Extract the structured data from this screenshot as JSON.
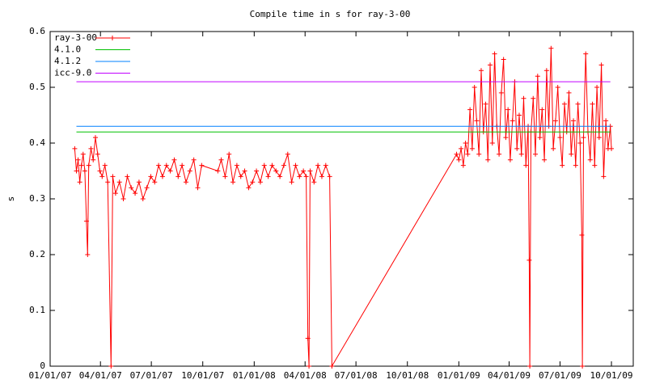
{
  "chart_data": {
    "type": "line",
    "title": "Compile time in s for ray-3-00",
    "y_label": "s",
    "xlim": [
      "01/01/07",
      "11/09/09"
    ],
    "xticks": [
      "01/01/07",
      "04/01/07",
      "07/01/07",
      "10/01/07",
      "01/01/08",
      "04/01/08",
      "07/01/08",
      "10/01/08",
      "01/01/09",
      "04/01/09",
      "07/01/09",
      "10/01/09"
    ],
    "ylim": [
      0,
      0.6
    ],
    "yticks": [
      0,
      0.1,
      0.2,
      0.3,
      0.4,
      0.5,
      0.6
    ],
    "legend": "top-left",
    "series": [
      {
        "name": "ray-3-00",
        "color": "#ff0000",
        "points": true,
        "x": [
          "02/14/07",
          "02/17/07",
          "02/20/07",
          "02/23/07",
          "02/26/07",
          "03/01/07",
          "03/04/07",
          "03/07/07",
          "03/09/07",
          "03/11/07",
          "03/15/07",
          "03/19/07",
          "03/23/07",
          "03/27/07",
          "03/31/07",
          "04/04/07",
          "04/09/07",
          "04/14/07",
          "04/20/07",
          "04/23/07",
          "04/28/07",
          "05/05/07",
          "05/12/07",
          "05/19/07",
          "05/26/07",
          "06/02/07",
          "06/09/07",
          "06/16/07",
          "06/23/07",
          "06/30/07",
          "07/07/07",
          "07/14/07",
          "07/21/07",
          "07/28/07",
          "08/04/07",
          "08/11/07",
          "08/18/07",
          "08/25/07",
          "09/01/07",
          "09/08/07",
          "09/15/07",
          "09/22/07",
          "09/29/07",
          "10/28/07",
          "11/03/07",
          "11/10/07",
          "11/17/07",
          "11/24/07",
          "12/01/07",
          "12/08/07",
          "12/15/07",
          "12/22/07",
          "12/29/07",
          "01/05/08",
          "01/12/08",
          "01/19/08",
          "01/26/08",
          "02/02/08",
          "02/09/08",
          "02/16/08",
          "02/23/08",
          "03/01/08",
          "03/08/08",
          "03/15/08",
          "03/22/08",
          "03/29/08",
          "04/03/08",
          "04/06/08",
          "04/08/08",
          "04/10/08",
          "04/17/08",
          "04/24/08",
          "05/01/08",
          "05/08/08",
          "05/15/08",
          "05/19/08",
          "12/28/08",
          "01/01/09",
          "01/05/09",
          "01/09/09",
          "01/13/09",
          "01/17/09",
          "01/21/09",
          "01/25/09",
          "01/29/09",
          "02/02/09",
          "02/06/09",
          "02/10/09",
          "02/14/09",
          "02/18/09",
          "02/22/09",
          "02/26/09",
          "03/02/09",
          "03/06/09",
          "03/10/09",
          "03/14/09",
          "03/18/09",
          "03/22/09",
          "03/26/09",
          "03/30/09",
          "04/03/09",
          "04/07/09",
          "04/11/09",
          "04/15/09",
          "04/19/09",
          "04/23/09",
          "04/27/09",
          "05/01/09",
          "05/05/09",
          "05/07/09",
          "05/08/09",
          "05/10/09",
          "05/14/09",
          "05/18/09",
          "05/22/09",
          "05/26/09",
          "05/30/09",
          "06/03/09",
          "06/07/09",
          "06/11/09",
          "06/15/09",
          "06/19/09",
          "06/23/09",
          "06/27/09",
          "07/01/09",
          "07/05/09",
          "07/09/09",
          "07/13/09",
          "07/17/09",
          "07/21/09",
          "07/25/09",
          "07/29/09",
          "08/02/09",
          "08/06/09",
          "08/09/09",
          "08/10/09",
          "08/12/09",
          "08/16/09",
          "08/20/09",
          "08/24/09",
          "08/28/09",
          "09/01/09",
          "09/05/09",
          "09/09/09",
          "09/13/09",
          "09/17/09",
          "09/21/09",
          "09/25/09",
          "09/29/09",
          "10/01/09"
        ],
        "values": [
          0.39,
          0.35,
          0.37,
          0.33,
          0.36,
          0.38,
          0.35,
          0.26,
          0.2,
          0.36,
          0.39,
          0.37,
          0.41,
          0.38,
          0.35,
          0.34,
          0.36,
          0.33,
          0,
          0.34,
          0.31,
          0.33,
          0.3,
          0.34,
          0.32,
          0.31,
          0.33,
          0.3,
          0.32,
          0.34,
          0.33,
          0.36,
          0.34,
          0.36,
          0.35,
          0.37,
          0.34,
          0.36,
          0.33,
          0.35,
          0.37,
          0.32,
          0.36,
          0.35,
          0.37,
          0.34,
          0.38,
          0.33,
          0.36,
          0.34,
          0.35,
          0.32,
          0.33,
          0.35,
          0.33,
          0.36,
          0.34,
          0.36,
          0.35,
          0.34,
          0.36,
          0.38,
          0.33,
          0.36,
          0.34,
          0.35,
          0.34,
          0.05,
          0,
          0.35,
          0.33,
          0.36,
          0.34,
          0.36,
          0.34,
          0,
          0.38,
          0.37,
          0.39,
          0.36,
          0.4,
          0.38,
          0.46,
          0.39,
          0.5,
          0.44,
          0.38,
          0.53,
          0.42,
          0.47,
          0.37,
          0.54,
          0.4,
          0.56,
          0.43,
          0.38,
          0.49,
          0.55,
          0.41,
          0.46,
          0.37,
          0.44,
          0.51,
          0.39,
          0.45,
          0.38,
          0.48,
          0.36,
          0.43,
          0.19,
          0,
          0.42,
          0.48,
          0.38,
          0.52,
          0.41,
          0.46,
          0.37,
          0.53,
          0.43,
          0.57,
          0.39,
          0.44,
          0.5,
          0.41,
          0.36,
          0.47,
          0.42,
          0.49,
          0.38,
          0.44,
          0.36,
          0.47,
          0.4,
          0.235,
          0,
          0.41,
          0.56,
          0.42,
          0.37,
          0.47,
          0.36,
          0.5,
          0.41,
          0.54,
          0.34,
          0.44,
          0.39,
          0.43,
          0.39
        ]
      },
      {
        "name": "4.1.0",
        "color": "#00c000",
        "x": [
          "02/17/07",
          "09/29/09"
        ],
        "values": [
          0.42,
          0.42
        ]
      },
      {
        "name": "4.1.2",
        "color": "#0080ff",
        "x": [
          "02/17/07",
          "09/29/09"
        ],
        "values": [
          0.43,
          0.43
        ]
      },
      {
        "name": "icc-9.0",
        "color": "#c000ff",
        "x": [
          "02/17/07",
          "09/29/09"
        ],
        "values": [
          0.51,
          0.51
        ]
      }
    ]
  }
}
